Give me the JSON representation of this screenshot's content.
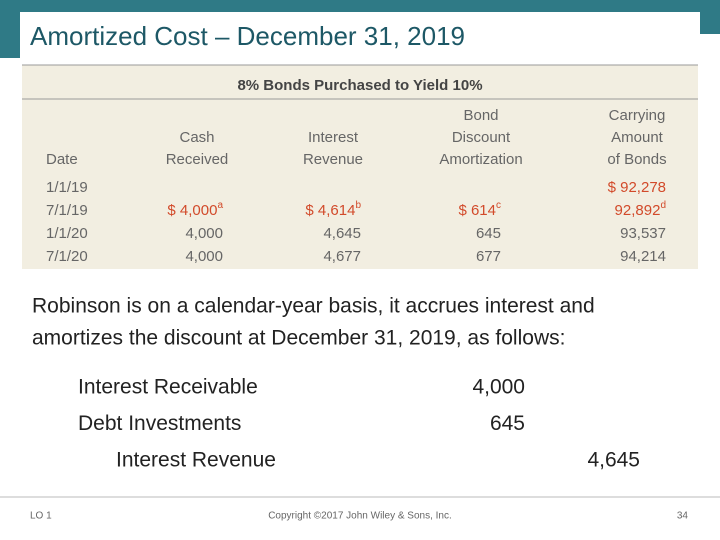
{
  "header": {
    "title": "Amortized Cost – December 31, 2019"
  },
  "table": {
    "title": "8% Bonds Purchased to Yield 10%",
    "columns": [
      [
        "Date"
      ],
      [
        "Cash",
        "Received"
      ],
      [
        "Interest",
        "Revenue"
      ],
      [
        "Bond",
        "Discount",
        "Amortization"
      ],
      [
        "Carrying",
        "Amount",
        "of Bonds"
      ]
    ],
    "rows": [
      [
        "1/1/19",
        null,
        null,
        null,
        {
          "text": "$ 92,278"
        }
      ],
      [
        "7/1/19",
        {
          "text": "$  4,000",
          "note": "a"
        },
        {
          "text": "$  4,614",
          "note": "b"
        },
        {
          "text": "$  614",
          "note": "c"
        },
        {
          "text": "92,892",
          "note": "d"
        }
      ],
      [
        "1/1/20",
        {
          "text": "4,000"
        },
        {
          "text": "4,645"
        },
        {
          "text": "645"
        },
        {
          "text": "93,537"
        }
      ],
      [
        "7/1/20",
        {
          "text": "4,000"
        },
        {
          "text": "4,677"
        },
        {
          "text": "677"
        },
        {
          "text": "94,214"
        }
      ]
    ]
  },
  "body": {
    "lines": [
      "Robinson is on a calendar-year basis, it accrues interest and",
      "amortizes the discount at December 31, 2019, as follows:"
    ]
  },
  "entry": [
    {
      "account": "Interest Receivable",
      "debit": "4,000"
    },
    {
      "account": "Debt Investments",
      "debit": "645"
    },
    {
      "account": "Interest Revenue",
      "credit": "4,645"
    }
  ],
  "footer": {
    "lo": "LO 1",
    "copyright": "Copyright ©2017 John Wiley & Sons, Inc.",
    "page": "34"
  }
}
